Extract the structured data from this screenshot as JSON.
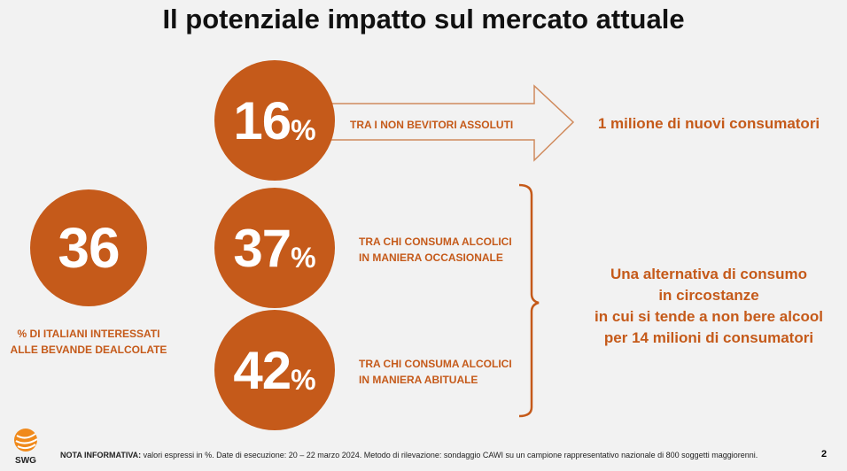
{
  "title": "Il potenziale impatto sul mercato attuale",
  "main": {
    "value": "36",
    "label_line1": "% DI ITALIANI INTERESSATI",
    "label_line2": "ALLE BEVANDE DEALCOLATE"
  },
  "segments": [
    {
      "value": "16",
      "unit": "%",
      "line1": "TRA I NON BEVITORI ASSOLUTI",
      "line2": ""
    },
    {
      "value": "37",
      "unit": "%",
      "line1": "TRA CHI CONSUMA ALCOLICI",
      "line2": "IN MANIERA OCCASIONALE"
    },
    {
      "value": "42",
      "unit": "%",
      "line1": "TRA CHI CONSUMA ALCOLICI",
      "line2": "IN MANIERA ABITUALE"
    }
  ],
  "outcome_top": "1 milione di nuovi consumatori",
  "outcome_bottom": [
    "Una alternativa di consumo",
    "in circostanze",
    "in cui si tende a non bere alcool",
    "per 14 milioni di consumatori"
  ],
  "footer": {
    "logo": "SWG",
    "note_bold": "NOTA INFORMATIVA:",
    "note": " valori espressi in %. Date di esecuzione: 20 – 22 marzo 2024. Metodo di rilevazione: sondaggio CAWI su un campione rappresentativo nazionale di 800 soggetti maggiorenni.",
    "page": "2"
  },
  "colors": {
    "accent": "#c55a1a"
  }
}
